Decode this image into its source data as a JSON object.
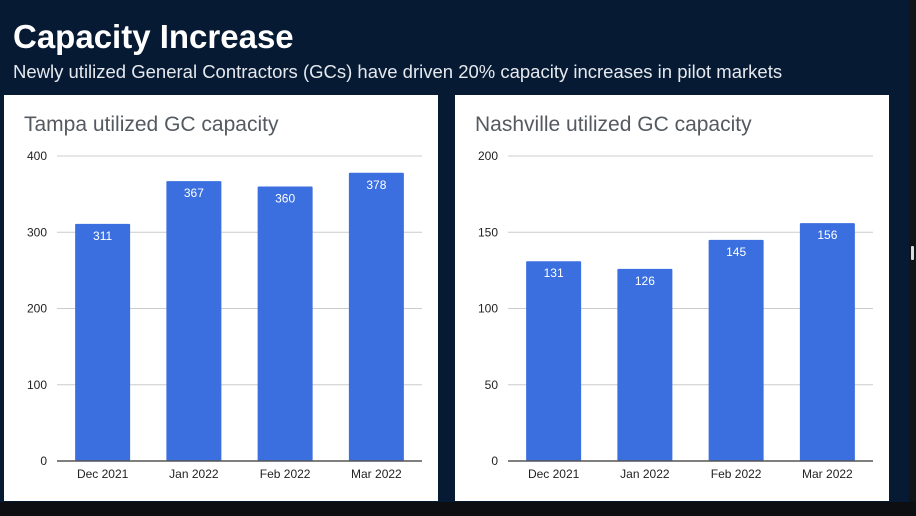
{
  "header": {
    "title": "Capacity Increase",
    "subtitle": "Newly utilized General Contractors (GCs) have driven 20% capacity increases in pilot markets"
  },
  "colors": {
    "background": "#061a33",
    "bar": "#3b6fe0",
    "gridline": "#cccccc",
    "axis": "#555555"
  },
  "chart_data": [
    {
      "type": "bar",
      "title": "Tampa utilized GC capacity",
      "categories": [
        "Dec 2021",
        "Jan 2022",
        "Feb 2022",
        "Mar 2022"
      ],
      "values": [
        311,
        367,
        360,
        378
      ],
      "data_labels": [
        "311",
        "367",
        "360",
        "378"
      ],
      "yticks": [
        0,
        100,
        200,
        300,
        400
      ],
      "ylim": [
        0,
        400
      ],
      "xlabel": "",
      "ylabel": "",
      "grid": true,
      "legend": "none"
    },
    {
      "type": "bar",
      "title": "Nashville utilized GC capacity",
      "categories": [
        "Dec 2021",
        "Jan 2022",
        "Feb 2022",
        "Mar 2022"
      ],
      "values": [
        131,
        126,
        145,
        156
      ],
      "data_labels": [
        "131",
        "126",
        "145",
        "156"
      ],
      "yticks": [
        0,
        50,
        100,
        150,
        200
      ],
      "ylim": [
        0,
        200
      ],
      "xlabel": "",
      "ylabel": "",
      "grid": true,
      "legend": "none"
    }
  ]
}
